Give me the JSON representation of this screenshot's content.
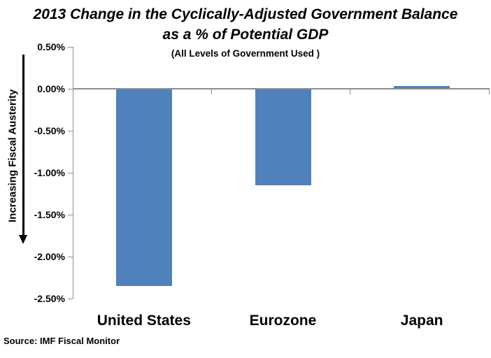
{
  "page": {
    "background": "#FFFFFF"
  },
  "title": {
    "line1": "2013 Change in the Cyclically-Adjusted Government Balance",
    "line2": "as a % of Potential GDP",
    "subtitle": "(All Levels of Government Used )"
  },
  "left_annotation": {
    "label": "Increasing Fiscal Austerity",
    "arrow_direction": "down"
  },
  "footer": {
    "source": "Source: IMF Fiscal Monitor"
  },
  "chart_data": {
    "type": "bar",
    "title": "2013 Change in the Cyclically-Adjusted Government Balance as a % of Potential GDP",
    "subtitle": "(All Levels of Government Used )",
    "categories": [
      "United States",
      "Eurozone",
      "Japan"
    ],
    "values": [
      -2.35,
      -1.15,
      0.03
    ],
    "unit": "%",
    "ylim": [
      -2.5,
      0.5
    ],
    "yticks": [
      {
        "value": 0.5,
        "label": "0.50%"
      },
      {
        "value": 0.0,
        "label": "0.00%"
      },
      {
        "value": -0.5,
        "label": "-0.50%"
      },
      {
        "value": -1.0,
        "label": "-1.00%"
      },
      {
        "value": -1.5,
        "label": "-1.50%"
      },
      {
        "value": -2.0,
        "label": "-2.00%"
      },
      {
        "value": -2.5,
        "label": "-2.50%"
      }
    ],
    "grid": false,
    "legend": "none",
    "bar_color": "#4F81BD",
    "axis_color": "#8C8C8C",
    "y_axis_annotation": "Increasing Fiscal Austerity",
    "source": "Source: IMF Fiscal Monitor"
  }
}
